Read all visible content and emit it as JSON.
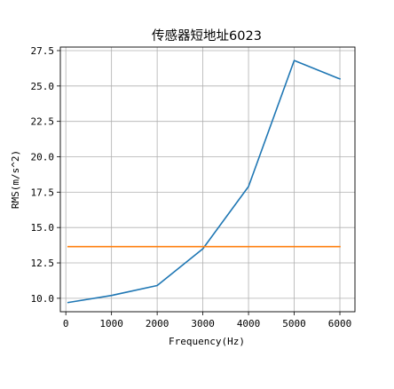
{
  "chart_data": {
    "type": "line",
    "title": "传感器短地址6023",
    "xlabel": "Frequency(Hz)",
    "ylabel": "RMS(m/s^2)",
    "xlim": [
      -120,
      6330
    ],
    "ylim": [
      9.05,
      27.75
    ],
    "x_ticks": [
      0,
      1000,
      2000,
      3000,
      4000,
      5000,
      6000
    ],
    "x_tick_labels": [
      "0",
      "1000",
      "2000",
      "3000",
      "4000",
      "5000",
      "6000"
    ],
    "y_ticks": [
      10.0,
      12.5,
      15.0,
      17.5,
      20.0,
      22.5,
      25.0,
      27.5
    ],
    "y_tick_labels": [
      "10.0",
      "12.5",
      "15.0",
      "17.5",
      "20.0",
      "22.5",
      "25.0",
      "27.5"
    ],
    "grid": true,
    "series": [
      {
        "color": "#1f77b4",
        "x": [
          50,
          1000,
          2000,
          3000,
          4000,
          5000,
          6000
        ],
        "y": [
          9.7,
          10.2,
          10.9,
          13.5,
          17.9,
          26.8,
          25.5
        ]
      },
      {
        "color": "#ff7f0e",
        "x": [
          50,
          6000
        ],
        "y": [
          13.65,
          13.65
        ]
      }
    ]
  }
}
